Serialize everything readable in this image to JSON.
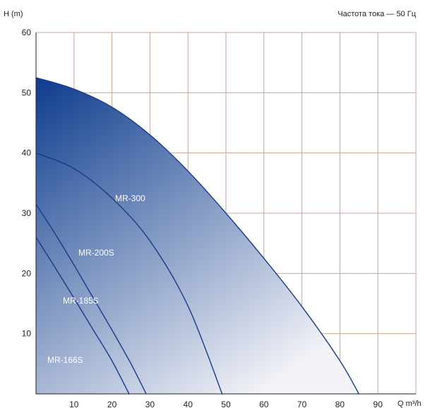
{
  "chart_data": {
    "type": "area",
    "note": "Частота тока — 50 Гц",
    "ylabel": "H (m)",
    "xlabel": "Q m³/h",
    "xlim": [
      0,
      100
    ],
    "ylim": [
      0,
      60
    ],
    "x_ticks": [
      10,
      20,
      30,
      40,
      50,
      60,
      70,
      80,
      90
    ],
    "y_ticks": [
      10,
      20,
      30,
      40,
      50,
      60
    ],
    "grid": true,
    "colors": {
      "curve": "#1a3a8c",
      "fill_dark": "#0a3a8c",
      "fill_light": "#f2f2f7",
      "grid": "#c9a89a"
    },
    "series": [
      {
        "name": "MR-300",
        "x": [
          0,
          10,
          20,
          30,
          40,
          50,
          60,
          70,
          80,
          85
        ],
        "y": [
          52.5,
          50.6,
          47.6,
          43.0,
          37.0,
          30.0,
          22.5,
          14.5,
          5.5,
          0
        ]
      },
      {
        "name": "MR-200S",
        "x": [
          0,
          10,
          20,
          30,
          40,
          49
        ],
        "y": [
          40,
          37.4,
          32.5,
          25.4,
          14.6,
          0
        ]
      },
      {
        "name": "MR-185S",
        "x": [
          0,
          5,
          10,
          15,
          20,
          25,
          29
        ],
        "y": [
          31.5,
          26.6,
          21.4,
          16.0,
          10.6,
          5.0,
          0
        ]
      },
      {
        "name": "MR-166S",
        "x": [
          0,
          5,
          10,
          15,
          20,
          24.5
        ],
        "y": [
          26,
          21.0,
          15.9,
          10.7,
          5.5,
          0
        ]
      }
    ]
  }
}
